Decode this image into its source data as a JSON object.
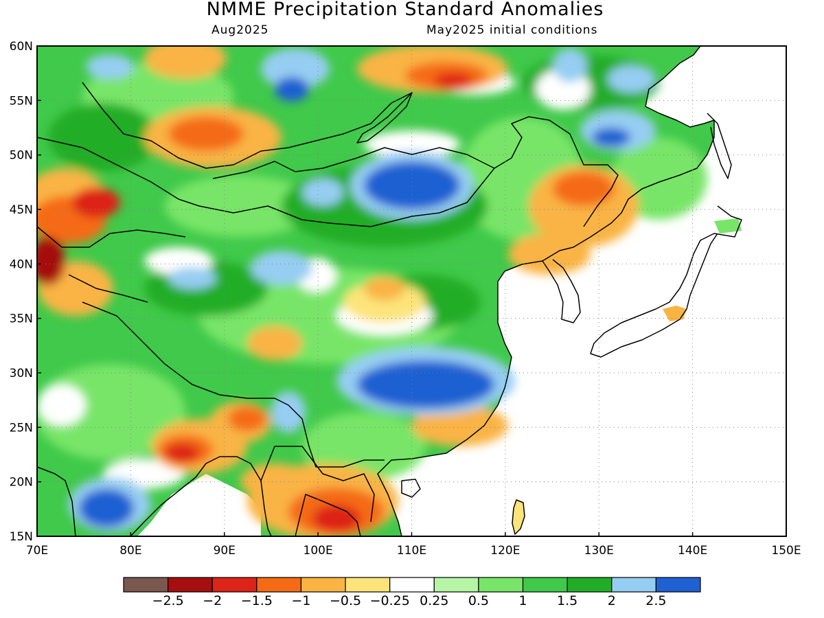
{
  "title": "NMME Precipitation Standard Anomalies",
  "subtitle_left": "Aug2025",
  "subtitle_right": "May2025 initial conditions",
  "map": {
    "lon_range": [
      70,
      150
    ],
    "lat_range": [
      15,
      60
    ],
    "lon_labels": [
      "70E",
      "80E",
      "90E",
      "100E",
      "110E",
      "120E",
      "130E",
      "140E",
      "150E"
    ],
    "lat_labels": [
      "15N",
      "20N",
      "25N",
      "30N",
      "35N",
      "40N",
      "45N",
      "50N",
      "55N",
      "60N"
    ],
    "ocean_color": "#ffffff",
    "grid": "dotted"
  },
  "colorbar": {
    "colors": [
      "#7a574f",
      "#a50f0f",
      "#dd2418",
      "#f56a14",
      "#f9b444",
      "#fde47a",
      "#ffffff",
      "#b6f5a6",
      "#78e568",
      "#40c94a",
      "#22ad28",
      "#96cdf2",
      "#1f61d2"
    ],
    "labels": [
      "−2.5",
      "−2",
      "−1.5",
      "−1",
      "−0.5",
      "−0.25",
      "0.25",
      "0.5",
      "1",
      "1.5",
      "2",
      "2.5"
    ]
  }
}
